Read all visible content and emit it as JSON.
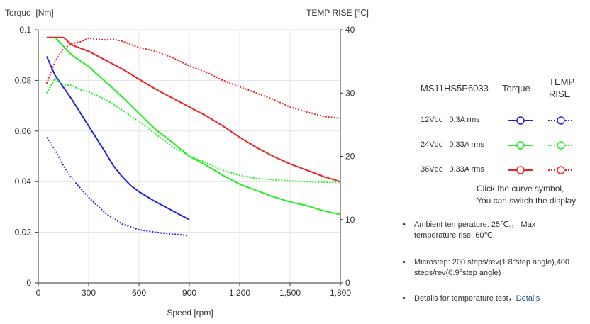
{
  "chart_data": {
    "type": "line",
    "xlabel": "Speed [rpm]",
    "ylabel_left": "Torque  [Nm]",
    "ylabel_right": "TEMP RISE [℃]",
    "xlim": [
      0,
      1800
    ],
    "ylim_left": [
      0,
      0.1
    ],
    "ylim_right": [
      0,
      40
    ],
    "x_ticks": [
      0,
      300,
      600,
      900,
      1200,
      1500,
      1800
    ],
    "x_tick_labels": [
      "0",
      "300",
      "600",
      "900",
      "1,200",
      "1,500",
      "1,800"
    ],
    "y_left_ticks": [
      0,
      0.02,
      0.04,
      0.06,
      0.08,
      0.1
    ],
    "y_left_tick_labels": [
      "0",
      "0.02",
      "0.04",
      "0.06",
      "0.08",
      "0.1"
    ],
    "y_right_ticks": [
      0,
      10,
      20,
      30,
      40
    ],
    "y_right_tick_labels": [
      "0",
      "10",
      "20",
      "30",
      "40"
    ],
    "grid": true,
    "series": [
      {
        "id": "torque-12",
        "axis": "left",
        "style": "solid",
        "color": "#2222dd",
        "x": [
          50,
          100,
          200,
          300,
          400,
          450,
          500,
          550,
          600,
          700,
          800,
          900
        ],
        "y": [
          0.0895,
          0.082,
          0.0725,
          0.062,
          0.0515,
          0.046,
          0.042,
          0.0385,
          0.036,
          0.032,
          0.0285,
          0.025
        ]
      },
      {
        "id": "temp-12",
        "axis": "right",
        "style": "dotted",
        "color": "#2222dd",
        "x": [
          50,
          100,
          150,
          200,
          300,
          400,
          500,
          600,
          700,
          800,
          900
        ],
        "y": [
          23,
          21,
          18.5,
          16.5,
          13.5,
          11,
          9.3,
          8.4,
          8,
          7.7,
          7.5
        ]
      },
      {
        "id": "torque-24",
        "axis": "left",
        "style": "solid",
        "color": "#22ee22",
        "x": [
          50,
          100,
          150,
          200,
          300,
          400,
          500,
          600,
          700,
          800,
          900,
          1000,
          1100,
          1200,
          1300,
          1400,
          1500,
          1600,
          1700,
          1800
        ],
        "y": [
          0.097,
          0.097,
          0.0935,
          0.09,
          0.0855,
          0.0795,
          0.0735,
          0.067,
          0.0605,
          0.0555,
          0.05,
          0.0465,
          0.0425,
          0.039,
          0.0365,
          0.034,
          0.032,
          0.0305,
          0.0285,
          0.027
        ]
      },
      {
        "id": "temp-24",
        "axis": "right",
        "style": "dotted",
        "color": "#22ee22",
        "x": [
          50,
          100,
          150,
          200,
          250,
          300,
          400,
          500,
          600,
          700,
          800,
          900,
          1000,
          1100,
          1200,
          1300,
          1400,
          1500,
          1600,
          1700,
          1800
        ],
        "y": [
          30,
          32.3,
          31.3,
          31.2,
          30.5,
          30.2,
          29,
          27.3,
          25.5,
          23.5,
          21.5,
          20,
          19,
          17.8,
          17,
          16.5,
          16.3,
          16.1,
          16,
          15.9,
          15.9
        ]
      },
      {
        "id": "torque-36",
        "axis": "left",
        "style": "solid",
        "color": "#ee2222",
        "x": [
          50,
          100,
          150,
          200,
          300,
          400,
          500,
          600,
          700,
          800,
          900,
          1000,
          1100,
          1200,
          1300,
          1400,
          1500,
          1600,
          1700,
          1800
        ],
        "y": [
          0.097,
          0.097,
          0.097,
          0.094,
          0.0915,
          0.088,
          0.0845,
          0.0805,
          0.0765,
          0.073,
          0.0695,
          0.066,
          0.062,
          0.0575,
          0.0535,
          0.05,
          0.047,
          0.0445,
          0.042,
          0.04
        ]
      },
      {
        "id": "temp-36",
        "axis": "right",
        "style": "dotted",
        "color": "#ee2222",
        "x": [
          50,
          100,
          150,
          200,
          250,
          300,
          350,
          400,
          450,
          500,
          600,
          700,
          800,
          900,
          1000,
          1100,
          1200,
          1300,
          1400,
          1500,
          1600,
          1700,
          1800
        ],
        "y": [
          31.5,
          35,
          37,
          37.8,
          38.1,
          38.7,
          38.5,
          38.4,
          38.5,
          38.2,
          37.2,
          36.6,
          35.6,
          34.3,
          33.3,
          32,
          31,
          30,
          29,
          27.8,
          27,
          26.3,
          26
        ]
      }
    ]
  },
  "legend": {
    "header_model": "MS11HS5P6033",
    "header_torque": "Torque",
    "header_temp_line1": "TEMP",
    "header_temp_line2": "RISE",
    "rows": [
      {
        "label": "12Vdc   0.3A rms",
        "color": "#2222dd"
      },
      {
        "label": "24Vdc   0.33A rms",
        "color": "#22ee22"
      },
      {
        "label": "36Vdc   0.33A rms",
        "color": "#ee2222"
      }
    ],
    "hint_line1": "Click the curve symbol,",
    "hint_line2": "You can switch the display"
  },
  "notes": {
    "ambient_line1": "Ambient temperature: 25℃.， Max",
    "ambient_line2": "temperature rise: 60℃.",
    "microstep_line1": "Microstep: 200 steps/rev(1.8°step angle),400",
    "microstep_line2": "steps/rev(0.9°step angle)",
    "details_text": "Details for temperature test，",
    "details_link": "Details"
  }
}
